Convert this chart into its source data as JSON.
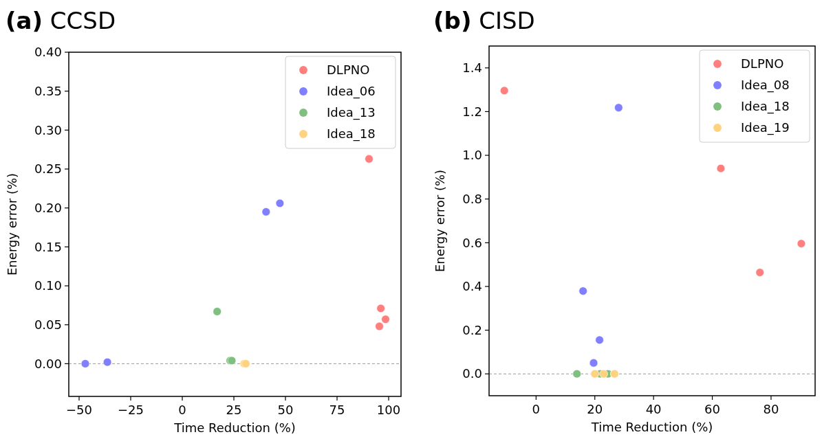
{
  "chart_data": [
    {
      "type": "scatter",
      "title": "(a) CCSD",
      "xlabel": "Time Reduction (%)",
      "ylabel": "Energy error (%)",
      "xlim": [
        -55,
        106
      ],
      "xticks": [
        {
          "value": -50,
          "label": "−50"
        },
        {
          "value": -25,
          "label": "−25"
        },
        0,
        25,
        50,
        75,
        100
      ],
      "ylim": [
        -0.042,
        0.4
      ],
      "yticks": [
        {
          "value": 0,
          "label": "0.00"
        },
        {
          "value": 0.05,
          "label": "0.05"
        },
        {
          "value": 0.1,
          "label": "0.10"
        },
        {
          "value": 0.15,
          "label": "0.15"
        },
        {
          "value": 0.2,
          "label": "0.20"
        },
        {
          "value": 0.25,
          "label": "0.25"
        },
        {
          "value": 0.3,
          "label": "0.30"
        },
        {
          "value": 0.35,
          "label": "0.35"
        },
        {
          "value": 0.4,
          "label": "0.40"
        }
      ],
      "grid": false,
      "legend": "top right",
      "marker": "circle",
      "ref_lines": [
        {
          "axis": "y",
          "value": 0,
          "color": "#999999",
          "line_style": "dashed"
        }
      ],
      "series": [
        {
          "name": "DLPNO",
          "color": "#ff7f7f",
          "x": [
            90.5,
            96.2,
            98.5,
            95.5
          ],
          "values": [
            0.263,
            0.071,
            0.057,
            0.048
          ]
        },
        {
          "name": "Idea_06",
          "color": "#7f7fff",
          "x": [
            -47,
            -36.3,
            40.6,
            47.3
          ],
          "values": [
            0.0,
            0.002,
            0.195,
            0.206
          ]
        },
        {
          "name": "Idea_13",
          "color": "#7fbf7f",
          "x": [
            16.9,
            23.2,
            24.0
          ],
          "values": [
            0.067,
            0.004,
            0.004
          ]
        },
        {
          "name": "Idea_18",
          "color": "#ffd27f",
          "x": [
            30.0,
            30.8
          ],
          "values": [
            0.0,
            0.0
          ]
        }
      ]
    },
    {
      "type": "scatter",
      "title": "(b) CISD",
      "xlabel": "Time Reduction (%)",
      "ylabel": "Energy error (%)",
      "xlim": [
        -16,
        95
      ],
      "xticks": [
        0,
        20,
        40,
        60,
        80
      ],
      "ylim": [
        -0.1,
        1.5
      ],
      "yticks": [
        {
          "value": 0,
          "label": "0.0"
        },
        0.2,
        0.4,
        0.6,
        0.8,
        {
          "value": 1,
          "label": "1.0"
        },
        1.2,
        1.4
      ],
      "grid": false,
      "legend": "top right",
      "marker": "circle",
      "ref_lines": [
        {
          "axis": "y",
          "value": 0,
          "color": "#999999",
          "line_style": "dashed"
        }
      ],
      "series": [
        {
          "name": "DLPNO",
          "color": "#ff7f7f",
          "x": [
            -10.8,
            62.9,
            76.2,
            90.3
          ],
          "values": [
            1.296,
            0.94,
            0.464,
            0.596
          ]
        },
        {
          "name": "Idea_08",
          "color": "#7f7fff",
          "x": [
            28.1,
            16.0,
            21.6,
            19.6
          ],
          "values": [
            1.218,
            0.379,
            0.155,
            0.05
          ]
        },
        {
          "name": "Idea_18",
          "color": "#7fbf7f",
          "x": [
            13.9,
            21.8,
            24.5,
            26.7
          ],
          "values": [
            0.0,
            0.0,
            0.0,
            0.0
          ]
        },
        {
          "name": "Idea_19",
          "color": "#ffd27f",
          "x": [
            20.0,
            23.0,
            26.7
          ],
          "values": [
            0.0,
            0.0,
            0.0
          ]
        }
      ]
    }
  ]
}
